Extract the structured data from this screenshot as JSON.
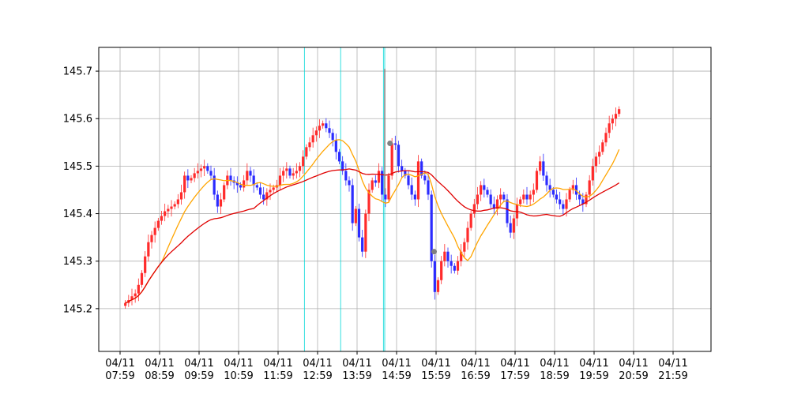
{
  "chart_data": {
    "type": "candlestick",
    "title": "",
    "xlabel": "",
    "ylabel": "",
    "ylim": [
      145.11,
      145.75
    ],
    "grid": true,
    "x_ticks": [
      {
        "date": "04/11",
        "time": "07:59"
      },
      {
        "date": "04/11",
        "time": "08:59"
      },
      {
        "date": "04/11",
        "time": "09:59"
      },
      {
        "date": "04/11",
        "time": "10:59"
      },
      {
        "date": "04/11",
        "time": "11:59"
      },
      {
        "date": "04/11",
        "time": "12:59"
      },
      {
        "date": "04/11",
        "time": "13:59"
      },
      {
        "date": "04/11",
        "time": "14:59"
      },
      {
        "date": "04/11",
        "time": "15:59"
      },
      {
        "date": "04/11",
        "time": "16:59"
      },
      {
        "date": "04/11",
        "time": "17:59"
      },
      {
        "date": "04/11",
        "time": "18:59"
      },
      {
        "date": "04/11",
        "time": "19:59"
      },
      {
        "date": "04/11",
        "time": "20:59"
      },
      {
        "date": "04/11",
        "time": "21:59"
      }
    ],
    "y_ticks": [
      "145.2",
      "145.3",
      "145.4",
      "145.5",
      "145.6",
      "145.7"
    ],
    "candle_start_minutes": 8,
    "candle_interval_minutes": 5,
    "closes": [
      145.212,
      145.218,
      145.226,
      145.232,
      145.25,
      145.275,
      145.31,
      145.34,
      145.355,
      145.37,
      145.385,
      145.395,
      145.405,
      145.41,
      145.415,
      145.42,
      145.43,
      145.445,
      145.48,
      145.47,
      145.475,
      145.485,
      145.49,
      145.495,
      145.5,
      145.49,
      145.48,
      145.44,
      145.415,
      145.43,
      145.46,
      145.48,
      145.47,
      145.465,
      145.46,
      145.455,
      145.47,
      145.49,
      145.48,
      145.46,
      145.455,
      145.44,
      145.43,
      145.445,
      145.45,
      145.455,
      145.46,
      145.48,
      145.49,
      145.495,
      145.48,
      145.485,
      145.49,
      145.5,
      145.52,
      145.54,
      145.55,
      145.565,
      145.575,
      145.585,
      145.59,
      145.58,
      145.57,
      145.555,
      145.53,
      145.51,
      145.49,
      145.47,
      145.46,
      145.38,
      145.41,
      145.35,
      145.32,
      145.4,
      145.45,
      145.47,
      145.465,
      145.49,
      145.44,
      145.43,
      145.48,
      145.548,
      145.545,
      145.5,
      145.49,
      145.48,
      145.46,
      145.44,
      145.43,
      145.51,
      145.48,
      145.47,
      145.44,
      145.3,
      145.235,
      145.26,
      145.3,
      145.32,
      145.3,
      145.29,
      145.28,
      145.3,
      145.32,
      145.34,
      145.37,
      145.4,
      145.42,
      145.44,
      145.46,
      145.45,
      145.44,
      145.42,
      145.41,
      145.43,
      145.44,
      145.43,
      145.38,
      145.36,
      145.39,
      145.42,
      145.43,
      145.44,
      145.43,
      145.44,
      145.45,
      145.49,
      145.51,
      145.48,
      145.46,
      145.45,
      145.44,
      145.43,
      145.42,
      145.41,
      145.43,
      145.45,
      145.46,
      145.44,
      145.43,
      145.42,
      145.44,
      145.47,
      145.5,
      145.52,
      145.53,
      145.55,
      145.57,
      145.59,
      145.6,
      145.61,
      145.62
    ]
  }
}
